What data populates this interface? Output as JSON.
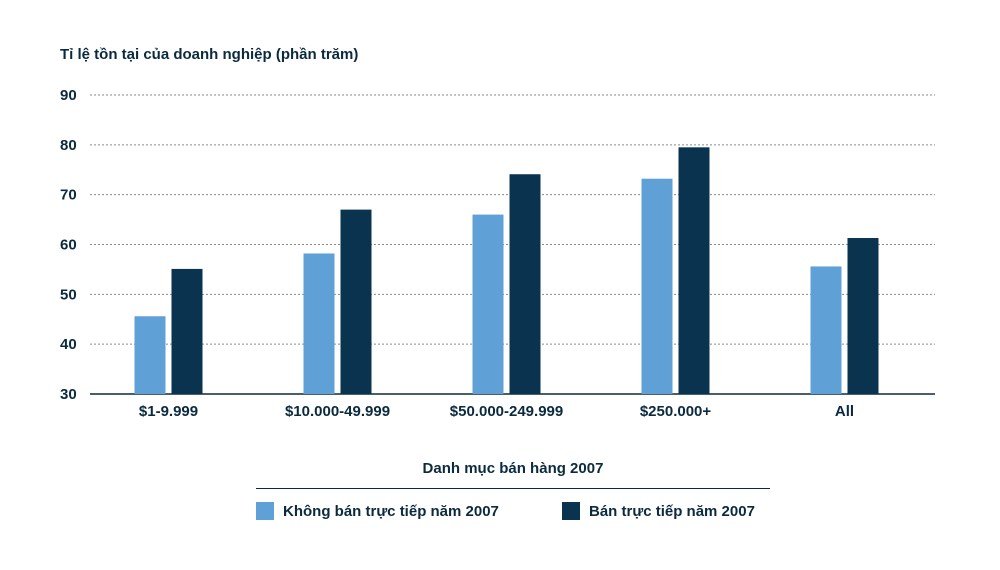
{
  "chart_data": {
    "type": "bar",
    "ylabel": "Tỉ lệ tồn tại của doanh nghiệp (phần trăm)",
    "xlabel": "Danh mục bán hàng 2007",
    "categories": [
      "$1-9.999",
      "$10.000-49.999",
      "$50.000-249.999",
      "$250.000+",
      "All"
    ],
    "series": [
      {
        "name": "Không bán trực tiếp năm 2007",
        "color": "#5fa0d6",
        "values": [
          45.6,
          58.2,
          66.0,
          73.2,
          55.6
        ]
      },
      {
        "name": "Bán trực tiếp năm 2007",
        "color": "#0a3350",
        "values": [
          55.1,
          67.0,
          74.1,
          79.5,
          61.3
        ]
      }
    ],
    "ylim": [
      30,
      90
    ],
    "yticks": [
      30,
      40,
      50,
      60,
      70,
      80,
      90
    ],
    "grid": true,
    "legend_position": "bottom"
  }
}
